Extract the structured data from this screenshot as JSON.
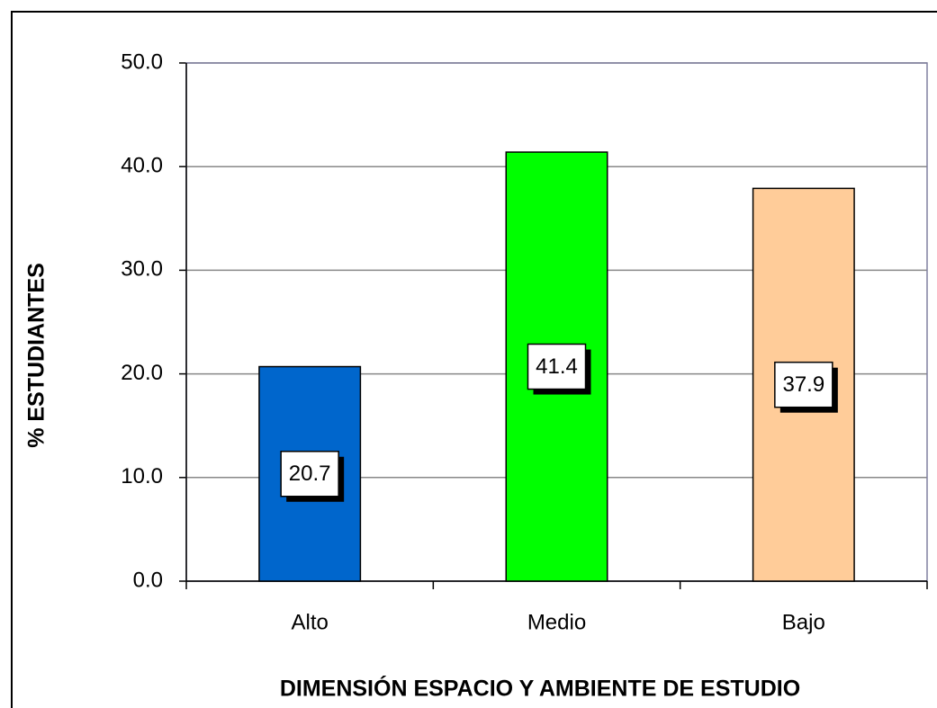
{
  "chart_data": {
    "type": "bar",
    "x_label": "DIMENSIÓN ESPACIO Y AMBIENTE DE ESTUDIO",
    "y_label": "% ESTUDIANTES",
    "categories": [
      "Alto",
      "Medio",
      "Bajo"
    ],
    "values": [
      20.7,
      41.4,
      37.9
    ],
    "colors": [
      "#0066cc",
      "#00ff00",
      "#ffcc99"
    ],
    "ylim": [
      0,
      50
    ],
    "yticks": [
      {
        "value": 0,
        "label": "0.0"
      },
      {
        "value": 10,
        "label": "10.0"
      },
      {
        "value": 20,
        "label": "20.0"
      },
      {
        "value": 30,
        "label": "30.0"
      },
      {
        "value": 40,
        "label": "40.0"
      },
      {
        "value": 50,
        "label": "50.0"
      }
    ],
    "grid": true
  }
}
